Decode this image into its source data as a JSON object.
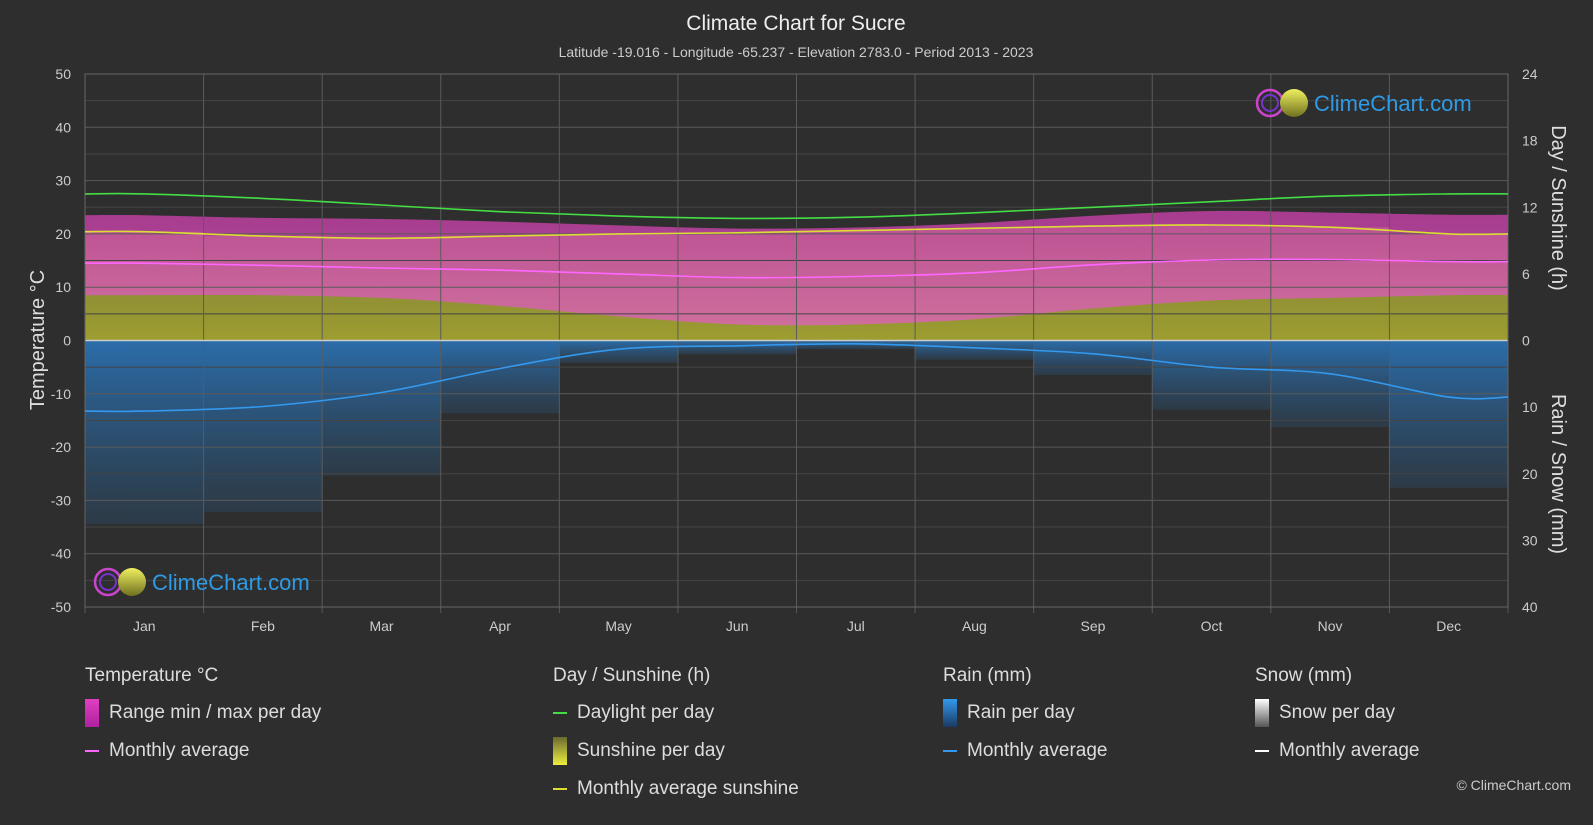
{
  "chart_data": {
    "type": "area",
    "title": "Climate Chart for Sucre",
    "subtitle": "Latitude -19.016 - Longitude -65.237 - Elevation 2783.0 - Period 2013 - 2023",
    "categories": [
      "Jan",
      "Feb",
      "Mar",
      "Apr",
      "May",
      "Jun",
      "Jul",
      "Aug",
      "Sep",
      "Oct",
      "Nov",
      "Dec"
    ],
    "y_left": {
      "label": "Temperature °C",
      "range": [
        -50,
        50
      ],
      "ticks": [
        "50",
        "40",
        "30",
        "20",
        "10",
        "0",
        "-10",
        "-20",
        "-30",
        "-40",
        "-50"
      ]
    },
    "y_right_top": {
      "label": "Day / Sunshine (h)",
      "range": [
        0,
        24
      ],
      "ticks": [
        "24",
        "18",
        "12",
        "6",
        "0"
      ]
    },
    "y_right_bottom": {
      "label": "Rain / Snow (mm)",
      "range": [
        0,
        40
      ],
      "ticks": [
        "0",
        "10",
        "20",
        "30",
        "40"
      ]
    },
    "grid": true,
    "series": [
      {
        "name": "Daylight per day",
        "unit": "h",
        "color": "#44dd44",
        "values": [
          13.2,
          12.8,
          12.2,
          11.6,
          11.2,
          11.0,
          11.1,
          11.5,
          12.0,
          12.5,
          13.0,
          13.2
        ]
      },
      {
        "name": "Monthly average sunshine",
        "unit": "h",
        "color": "#dddd33",
        "values": [
          9.8,
          9.4,
          9.2,
          9.4,
          9.6,
          9.7,
          9.9,
          10.1,
          10.3,
          10.4,
          10.2,
          9.6
        ]
      },
      {
        "name": "Temperature monthly average",
        "unit": "°C",
        "color": "#ff66ff",
        "values": [
          14.5,
          14.1,
          13.6,
          13.2,
          12.5,
          11.8,
          12.0,
          12.7,
          14.2,
          15.1,
          15.2,
          14.8
        ]
      },
      {
        "name": "Temperature max monthly average",
        "unit": "°C",
        "color": "#e040c0",
        "values": [
          23.5,
          23.0,
          22.8,
          22.3,
          21.6,
          21.0,
          21.2,
          22.0,
          23.4,
          24.3,
          24.0,
          23.6
        ]
      },
      {
        "name": "Temperature min monthly average",
        "unit": "°C",
        "color": "#e040c0",
        "values": [
          8.5,
          8.5,
          8.0,
          6.5,
          4.5,
          3.0,
          3.0,
          4.0,
          6.0,
          7.5,
          8.0,
          8.5
        ]
      },
      {
        "name": "Rain monthly average",
        "unit": "mm",
        "color": "#3399ee",
        "values": [
          10.6,
          9.9,
          7.8,
          4.2,
          1.3,
          0.8,
          0.5,
          1.1,
          2.0,
          4.0,
          5.0,
          8.5
        ]
      }
    ]
  },
  "legend": {
    "temperature": {
      "heading": "Temperature °C",
      "range": "Range min / max per day",
      "avg": "Monthly average"
    },
    "sunshine": {
      "heading": "Day / Sunshine (h)",
      "daylight": "Daylight per day",
      "sunshine": "Sunshine per day",
      "avg": "Monthly average sunshine"
    },
    "rain": {
      "heading": "Rain (mm)",
      "per_day": "Rain per day",
      "avg": "Monthly average"
    },
    "snow": {
      "heading": "Snow (mm)",
      "per_day": "Snow per day",
      "avg": "Monthly average"
    }
  },
  "brand": {
    "name": "ClimeChart.com",
    "copyright": "© ClimeChart.com"
  },
  "colors": {
    "background": "#2e2e2e",
    "brand": "#2e9be6",
    "temp_range": "#e040c0",
    "sunshine_fill": "#b3b33a",
    "rain_fill": "#2a6fb0"
  }
}
